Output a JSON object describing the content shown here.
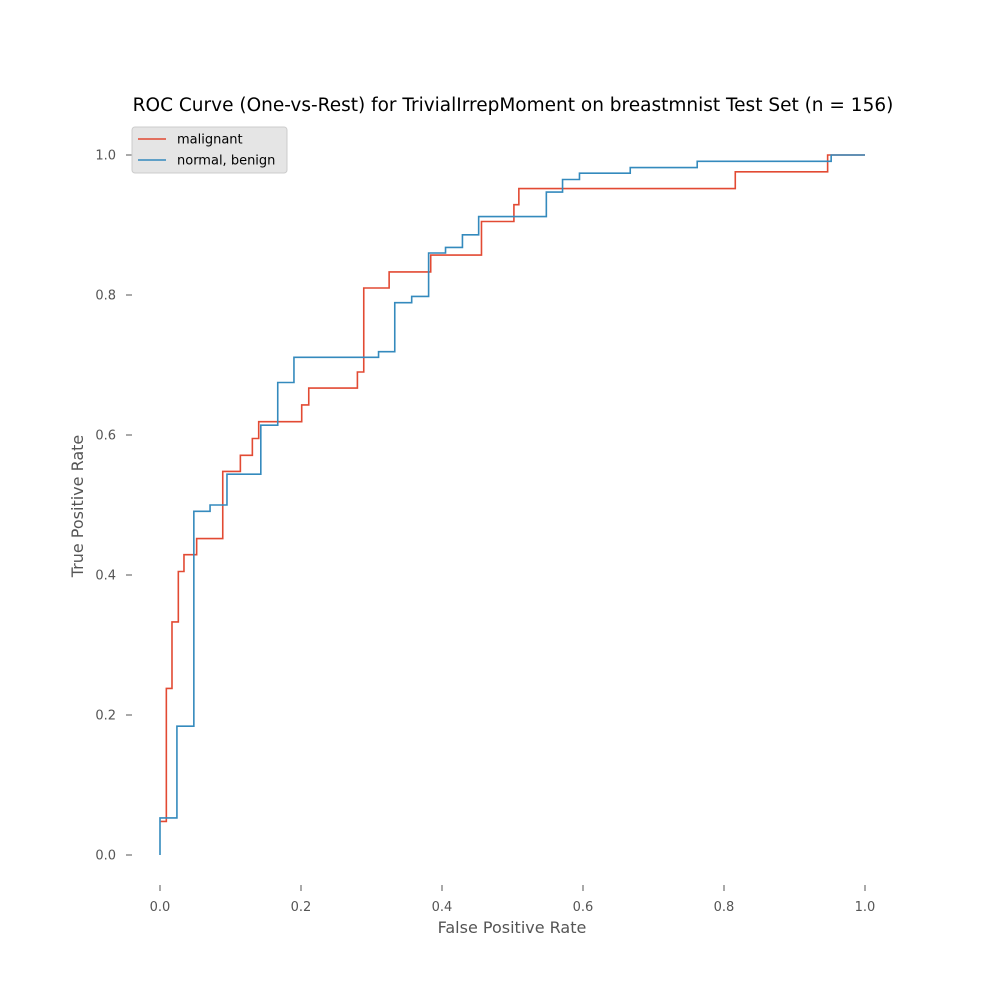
{
  "chart_data": {
    "type": "line",
    "title": "ROC Curve (One-vs-Rest) for TrivialIrrepMoment on breastmnist Test Set (n = 156)",
    "xlabel": "False Positive Rate",
    "ylabel": "True Positive Rate",
    "xlim": [
      -0.05,
      1.05
    ],
    "ylim": [
      -0.05,
      1.05
    ],
    "xticks": [
      "0.0",
      "0.2",
      "0.4",
      "0.6",
      "0.8",
      "1.0"
    ],
    "yticks": [
      "0.0",
      "0.2",
      "0.4",
      "0.6",
      "0.8",
      "1.0"
    ],
    "grid": false,
    "legend_position": "upper-left",
    "series": [
      {
        "name": "malignant",
        "color": "#E24A33",
        "x": [
          0,
          0.009,
          0.009,
          0.017,
          0.017,
          0.026,
          0.026,
          0.034,
          0.034,
          0.048,
          0.048,
          0.052,
          0.052,
          0.089,
          0.089,
          0.114,
          0.114,
          0.131,
          0.131,
          0.14,
          0.14,
          0.201,
          0.201,
          0.211,
          0.211,
          0.28,
          0.28,
          0.289,
          0.289,
          0.325,
          0.325,
          0.384,
          0.384,
          0.456,
          0.456,
          0.502,
          0.502,
          0.509,
          0.509,
          0.816,
          0.816,
          0.947,
          0.947,
          0.952,
          0.952,
          1.0
        ],
        "y": [
          0.048,
          0.048,
          0.238,
          0.238,
          0.333,
          0.333,
          0.405,
          0.405,
          0.429,
          0.429,
          0.429,
          0.429,
          0.452,
          0.452,
          0.548,
          0.548,
          0.571,
          0.571,
          0.595,
          0.595,
          0.619,
          0.619,
          0.643,
          0.643,
          0.667,
          0.667,
          0.69,
          0.69,
          0.81,
          0.81,
          0.833,
          0.833,
          0.857,
          0.857,
          0.905,
          0.905,
          0.929,
          0.929,
          0.952,
          0.952,
          0.976,
          0.976,
          1.0,
          1.0,
          1.0,
          1.0
        ]
      },
      {
        "name": "normal, benign",
        "color": "#348ABD",
        "x": [
          0,
          0,
          0.024,
          0.024,
          0.048,
          0.048,
          0.071,
          0.071,
          0.095,
          0.095,
          0.143,
          0.143,
          0.167,
          0.167,
          0.19,
          0.19,
          0.31,
          0.31,
          0.333,
          0.333,
          0.357,
          0.357,
          0.381,
          0.381,
          0.405,
          0.405,
          0.429,
          0.429,
          0.452,
          0.452,
          0.548,
          0.548,
          0.571,
          0.571,
          0.595,
          0.595,
          0.667,
          0.667,
          0.762,
          0.762,
          0.952,
          0.952,
          1.0
        ],
        "y": [
          0,
          0.053,
          0.053,
          0.184,
          0.184,
          0.491,
          0.491,
          0.5,
          0.5,
          0.544,
          0.544,
          0.614,
          0.614,
          0.675,
          0.675,
          0.711,
          0.711,
          0.719,
          0.719,
          0.789,
          0.789,
          0.798,
          0.798,
          0.86,
          0.86,
          0.868,
          0.868,
          0.886,
          0.886,
          0.912,
          0.912,
          0.947,
          0.947,
          0.965,
          0.965,
          0.974,
          0.974,
          0.982,
          0.982,
          0.991,
          0.991,
          1.0,
          1.0
        ]
      }
    ]
  }
}
